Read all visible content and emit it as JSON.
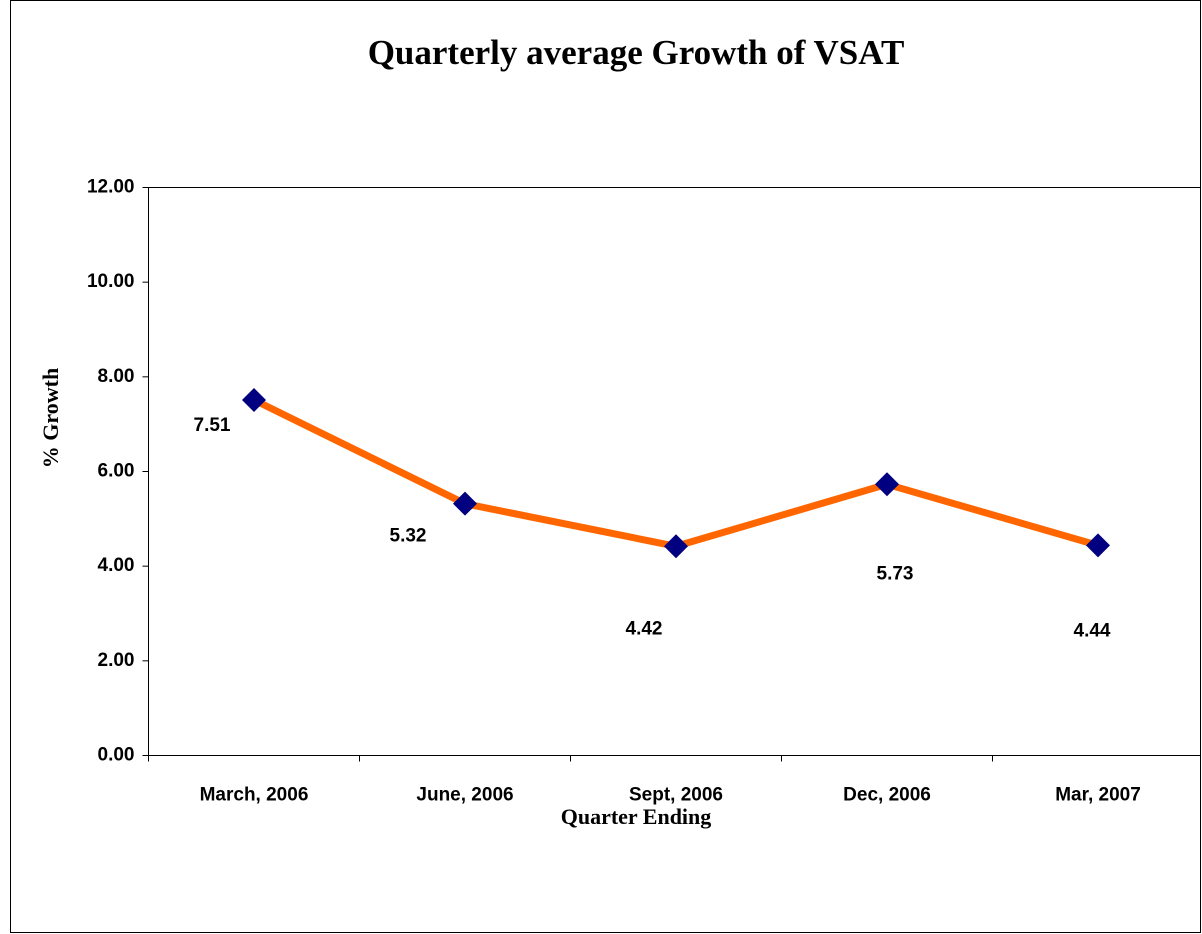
{
  "chart_data": {
    "type": "line",
    "title": "Quarterly average Growth of VSAT",
    "x_label": "Quarter Ending",
    "y_label": "% Growth",
    "categories": [
      "March, 2006",
      "June, 2006",
      "Sept, 2006",
      "Dec, 2006",
      "Mar, 2007"
    ],
    "series": [
      {
        "name": "% Growth",
        "color": "#ff6600",
        "marker_color": "#000080",
        "values": [
          7.51,
          5.32,
          4.42,
          5.73,
          4.44
        ]
      }
    ],
    "ylim": [
      0,
      12
    ],
    "yticks": [
      {
        "value": 0,
        "label": "0.00"
      },
      {
        "value": 2,
        "label": "2.00"
      },
      {
        "value": 4,
        "label": "4.00"
      },
      {
        "value": 6,
        "label": "6.00"
      },
      {
        "value": 8,
        "label": "8.00"
      },
      {
        "value": 10,
        "label": "10.00"
      },
      {
        "value": 12,
        "label": "12.00"
      }
    ]
  }
}
